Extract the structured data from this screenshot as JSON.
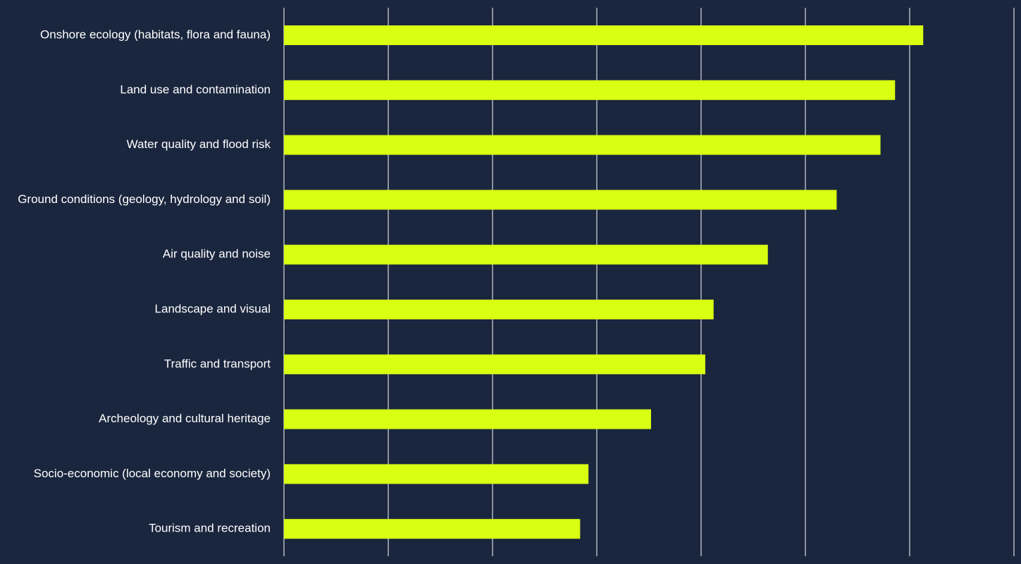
{
  "chart_data": {
    "type": "bar",
    "orientation": "horizontal",
    "categories": [
      "Onshore ecology (habitats, flora and fauna)",
      "Land use and contamination",
      "Water quality and flood risk",
      "Ground conditions (geology, hydrology and soil)",
      "Air quality and noise",
      "Landscape and visual",
      "Traffic and transport",
      "Archeology and cultural heritage",
      "Socio-economic (local economy and society)",
      "Tourism and recreation"
    ],
    "values": [
      6.13,
      5.86,
      5.72,
      5.3,
      4.64,
      4.12,
      4.04,
      3.52,
      2.92,
      2.84
    ],
    "xlim": [
      0,
      7
    ],
    "grid": true,
    "gridline_count": 8,
    "tick_labels_shown": false,
    "legend": "none",
    "colors": {
      "background": "#1a263e",
      "bar": "#d9ff12",
      "grid": "#ffffff",
      "text": "#ffffff"
    }
  }
}
